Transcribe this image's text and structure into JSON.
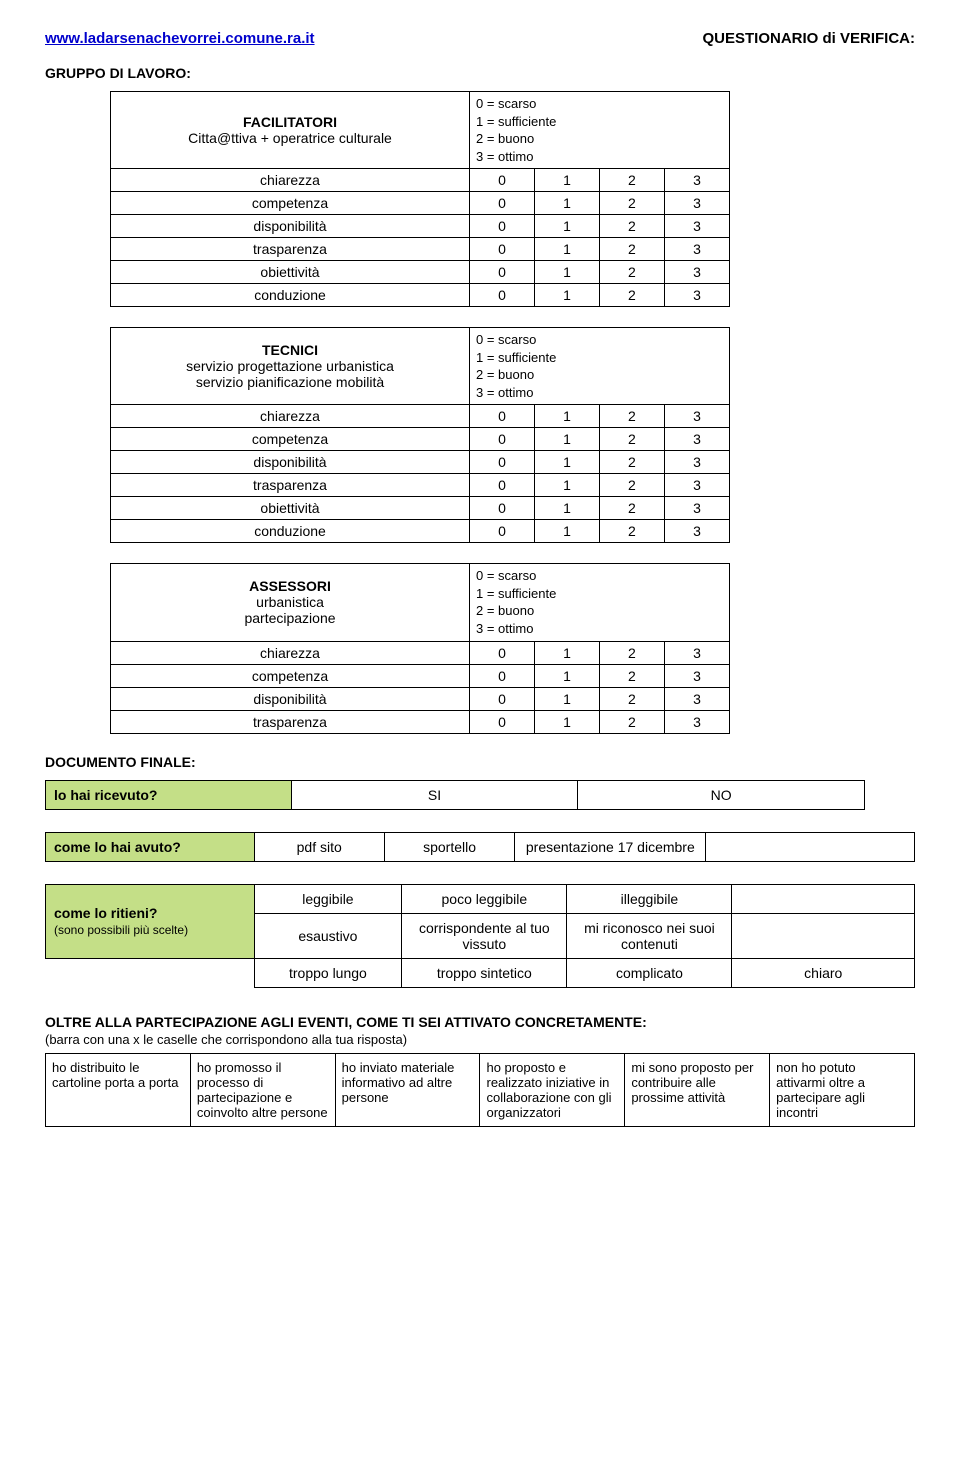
{
  "header": {
    "url": "www.ladarsenachevorrei.comune.ra.it",
    "title": "QUESTIONARIO  di VERIFICA:"
  },
  "gruppo_title": "GRUPPO DI LAVORO:",
  "legend": {
    "l0": "0 = scarso",
    "l1": "1 = sufficiente",
    "l2": "2 = buono",
    "l3": "3 = ottimo"
  },
  "scale": {
    "v0": "0",
    "v1": "1",
    "v2": "2",
    "v3": "3"
  },
  "blocks": [
    {
      "title": "FACILITATORI",
      "sub": "Citta@ttiva + operatrice culturale",
      "rows": [
        "chiarezza",
        "competenza",
        "disponibilità",
        "trasparenza",
        "obiettività",
        "conduzione"
      ]
    },
    {
      "title": "TECNICI",
      "sub": "servizio progettazione urbanistica\nservizio pianificazione mobilità",
      "rows": [
        "chiarezza",
        "competenza",
        "disponibilità",
        "trasparenza",
        "obiettività",
        "conduzione"
      ]
    },
    {
      "title": "ASSESSORI",
      "sub": "urbanistica\npartecipazione",
      "rows": [
        "chiarezza",
        "competenza",
        "disponibilità",
        "trasparenza"
      ]
    }
  ],
  "docfinal": {
    "title": "DOCUMENTO FINALE:",
    "q": "lo hai ricevuto?",
    "si": "SI",
    "no": "NO"
  },
  "avuto": {
    "q": "come lo hai avuto?",
    "opts": [
      "pdf sito",
      "sportello",
      "presentazione 17 dicembre",
      ""
    ]
  },
  "ritieni": {
    "q": "come lo ritieni?",
    "sub": "(sono possibili più scelte)",
    "row1": [
      "leggibile",
      "poco leggibile",
      "illeggibile",
      ""
    ],
    "row2": [
      "esaustivo",
      "corrispondente al tuo vissuto",
      "mi riconosco nei suoi contenuti",
      ""
    ],
    "row3": [
      "troppo lungo",
      "troppo sintetico",
      "complicato",
      "chiaro"
    ]
  },
  "oltre": {
    "title": "OLTRE ALLA PARTECIPAZIONE AGLI EVENTI, COME TI SEI ATTIVATO CONCRETAMENTE:",
    "sub": "(barra con una x le caselle che corrispondono alla tua risposta)",
    "cells": [
      "ho distribuito le cartoline porta a porta",
      "ho promosso il processo di partecipazione e coinvolto altre persone",
      "ho inviato materiale informativo ad altre persone",
      "ho proposto e realizzato iniziative in collaborazione con gli organizzatori",
      "mi sono proposto per contribuire alle prossime attività",
      "non ho potuto attivarmi oltre a partecipare agli incontri"
    ]
  }
}
